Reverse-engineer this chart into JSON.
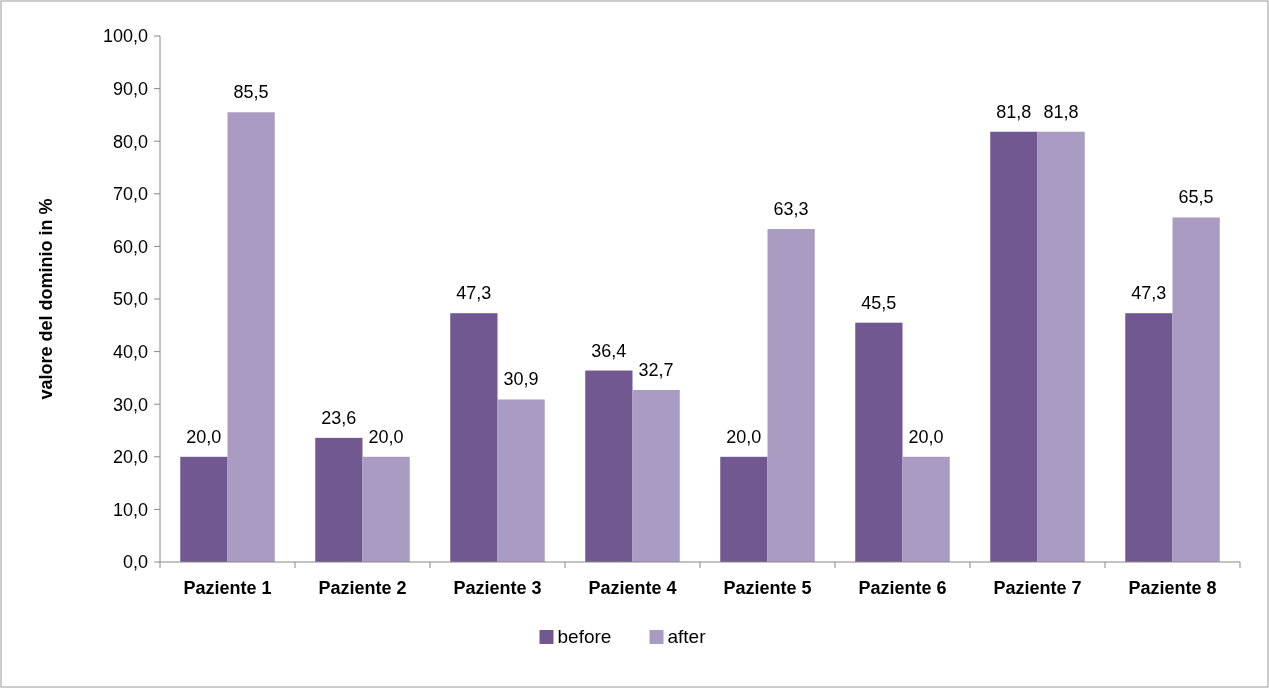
{
  "chart_data": {
    "type": "bar",
    "ylabel": "valore del dominio in %",
    "categories": [
      "Paziente 1",
      "Paziente 2",
      "Paziente 3",
      "Paziente 4",
      "Paziente 5",
      "Paziente 6",
      "Paziente 7",
      "Paziente 8"
    ],
    "series": [
      {
        "name": "before",
        "color": "#725890",
        "values": [
          20.0,
          23.6,
          47.3,
          36.4,
          20.0,
          45.5,
          81.8,
          47.3
        ],
        "value_labels": [
          "20,0",
          "23,6",
          "47,3",
          "36,4",
          "20,0",
          "45,5",
          "81,8",
          "47,3"
        ]
      },
      {
        "name": "after",
        "color": "#a99bc1",
        "values": [
          85.5,
          20.0,
          30.9,
          32.7,
          63.3,
          20.0,
          81.8,
          65.5
        ],
        "value_labels": [
          "85,5",
          "20,0",
          "30,9",
          "32,7",
          "63,3",
          "20,0",
          "81,8",
          "65,5"
        ]
      }
    ],
    "ylim": [
      0,
      100
    ],
    "yticks": [
      {
        "value": 0,
        "label": "0,0"
      },
      {
        "value": 10,
        "label": "10,0"
      },
      {
        "value": 20,
        "label": "20,0"
      },
      {
        "value": 30,
        "label": "30,0"
      },
      {
        "value": 40,
        "label": "40,0"
      },
      {
        "value": 50,
        "label": "50,0"
      },
      {
        "value": 60,
        "label": "60,0"
      },
      {
        "value": 70,
        "label": "70,0"
      },
      {
        "value": 80,
        "label": "80,0"
      },
      {
        "value": 90,
        "label": "90,0"
      },
      {
        "value": 100,
        "label": "100,0"
      }
    ],
    "grid": false,
    "legend": "bottom"
  }
}
